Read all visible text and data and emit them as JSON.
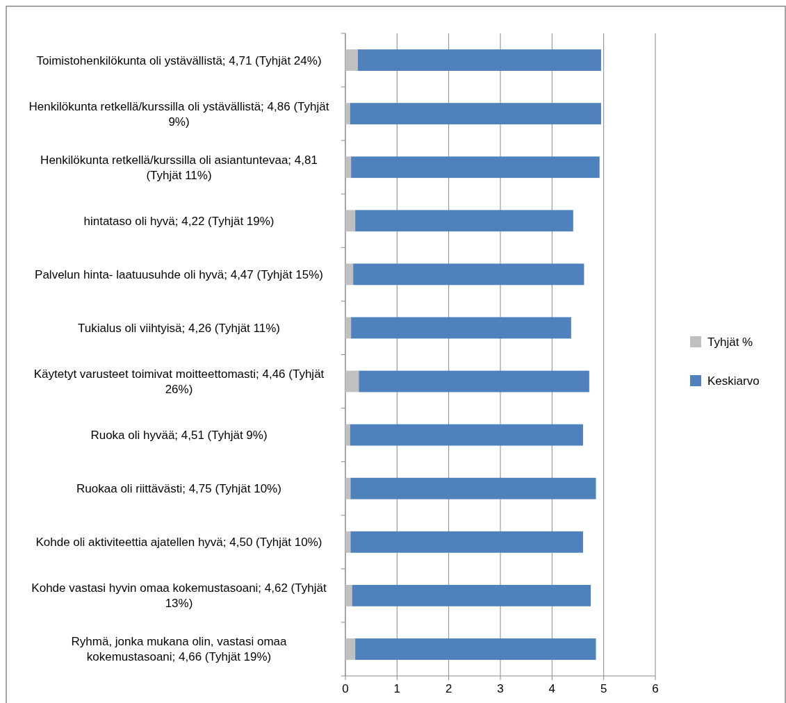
{
  "chart_data": {
    "type": "bar",
    "orientation": "horizontal",
    "stacked": true,
    "categories": [
      "Toimistohenkilökunta oli ystävällistä; 4,71 (Tyhjät 24%)",
      "Henkilökunta retkellä/kurssilla oli ystävällistä; 4,86 (Tyhjät 9%)",
      "Henkilökunta retkellä/kurssilla oli asiantuntevaa; 4,81 (Tyhjät 11%)",
      "hintataso oli hyvä; 4,22 (Tyhjät 19%)",
      "Palvelun hinta- laatuusuhde oli hyvä; 4,47 (Tyhjät 15%)",
      "Tukialus oli viihtyisä; 4,26 (Tyhjät 11%)",
      "Käytetyt varusteet toimivat moitteettomasti; 4,46 (Tyhjät 26%)",
      "Ruoka oli hyvää; 4,51 (Tyhjät 9%)",
      "Ruokaa oli riittävästi; 4,75 (Tyhjät 10%)",
      "Kohde oli aktiviteettia ajatellen hyvä; 4,50 (Tyhjät 10%)",
      "Kohde vastasi hyvin omaa kokemustasoani; 4,62 (Tyhjät 13%)",
      "Ryhmä, jonka mukana olin, vastasi omaa kokemustasoani; 4,66 (Tyhjät 19%)"
    ],
    "series": [
      {
        "name": "Tyhjät %",
        "color": "#c0c0c0",
        "values": [
          0.24,
          0.09,
          0.11,
          0.19,
          0.15,
          0.11,
          0.26,
          0.09,
          0.1,
          0.1,
          0.13,
          0.19
        ]
      },
      {
        "name": "Keskiarvo",
        "color": "#4f81bd",
        "values": [
          4.71,
          4.86,
          4.81,
          4.22,
          4.47,
          4.26,
          4.46,
          4.51,
          4.75,
          4.5,
          4.62,
          4.66
        ]
      }
    ],
    "xlim": [
      0,
      6
    ],
    "xticks": [
      0,
      1,
      2,
      3,
      4,
      5,
      6
    ],
    "grid": "x",
    "legend": "right"
  }
}
